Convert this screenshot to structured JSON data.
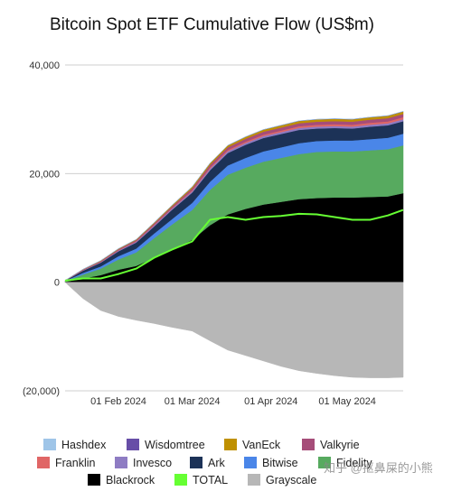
{
  "chart_data": {
    "type": "area",
    "title": "Bitcoin Spot ETF Cumulative Flow (US$m)",
    "ylim": [
      -20000,
      40000
    ],
    "y_ticks": [
      {
        "value": 40000,
        "label": "40,000"
      },
      {
        "value": 20000,
        "label": "20,000"
      },
      {
        "value": 0,
        "label": "0"
      },
      {
        "value": -20000,
        "label": "(20,000)"
      }
    ],
    "grid": true,
    "legend_position": "bottom",
    "x": [
      "2024-01-11",
      "2024-01-18",
      "2024-01-25",
      "2024-02-01",
      "2024-02-08",
      "2024-02-15",
      "2024-02-22",
      "2024-03-01",
      "2024-03-08",
      "2024-03-15",
      "2024-03-22",
      "2024-03-29",
      "2024-04-05",
      "2024-04-12",
      "2024-04-19",
      "2024-04-26",
      "2024-05-03",
      "2024-05-10",
      "2024-05-17",
      "2024-05-23"
    ],
    "x_ticks": [
      {
        "value": "2024-02-01",
        "label": "01 Feb 2024"
      },
      {
        "value": "2024-03-01",
        "label": "01 Mar 2024"
      },
      {
        "value": "2024-04-01",
        "label": "01 Apr 2024"
      },
      {
        "value": "2024-05-01",
        "label": "01 May 2024"
      }
    ],
    "series": [
      {
        "name": "Blackrock",
        "color": "#000000",
        "values": [
          100,
          700,
          1300,
          2300,
          3000,
          4500,
          6000,
          7800,
          10500,
          12500,
          13500,
          14300,
          14800,
          15300,
          15500,
          15600,
          15600,
          15700,
          15800,
          16400
        ]
      },
      {
        "name": "Fidelity",
        "color": "#57aa5f",
        "values": [
          100,
          700,
          1200,
          1900,
          2500,
          3600,
          4600,
          5500,
          6500,
          7300,
          7600,
          7900,
          8100,
          8300,
          8500,
          8500,
          8500,
          8600,
          8700,
          8800
        ]
      },
      {
        "name": "Bitwise",
        "color": "#4a86e8",
        "values": [
          40,
          300,
          400,
          600,
          700,
          850,
          1000,
          1300,
          1500,
          1700,
          1800,
          1900,
          1950,
          2000,
          2000,
          2000,
          2000,
          2050,
          2100,
          2150
        ]
      },
      {
        "name": "Ark",
        "color": "#1c3257",
        "values": [
          50,
          400,
          700,
          900,
          1100,
          1300,
          1700,
          1900,
          2100,
          2300,
          2400,
          2450,
          2450,
          2450,
          2300,
          2300,
          2200,
          2300,
          2300,
          2300
        ]
      },
      {
        "name": "Invesco",
        "color": "#8e7cc3",
        "values": [
          10,
          70,
          100,
          130,
          150,
          180,
          200,
          250,
          300,
          320,
          340,
          350,
          350,
          360,
          360,
          360,
          360,
          360,
          360,
          360
        ]
      },
      {
        "name": "Franklin",
        "color": "#e06666",
        "values": [
          10,
          40,
          60,
          70,
          90,
          110,
          130,
          160,
          200,
          220,
          240,
          260,
          280,
          300,
          320,
          330,
          340,
          350,
          360,
          380
        ]
      },
      {
        "name": "Valkyrie",
        "color": "#a64d79",
        "values": [
          10,
          100,
          140,
          180,
          210,
          250,
          300,
          400,
          500,
          520,
          540,
          550,
          560,
          570,
          580,
          580,
          580,
          590,
          590,
          600
        ]
      },
      {
        "name": "VanEck",
        "color": "#bf9000",
        "values": [
          10,
          60,
          80,
          100,
          130,
          160,
          200,
          250,
          300,
          330,
          350,
          370,
          390,
          400,
          410,
          410,
          410,
          420,
          430,
          440
        ]
      },
      {
        "name": "Wisdomtree",
        "color": "#674ea7",
        "values": [
          1,
          3,
          5,
          7,
          9,
          11,
          13,
          16,
          20,
          22,
          24,
          26,
          28,
          30,
          30,
          30,
          30,
          30,
          30,
          30
        ]
      },
      {
        "name": "Hashdex",
        "color": "#9fc5e8",
        "values": [
          0,
          2,
          3,
          4,
          5,
          6,
          8,
          10,
          12,
          13,
          13,
          13,
          13,
          13,
          13,
          13,
          13,
          13,
          13,
          13
        ]
      },
      {
        "name": "Grayscale",
        "color": "#b7b7b7",
        "values": [
          0,
          -3000,
          -5200,
          -6300,
          -7000,
          -7600,
          -8300,
          -9000,
          -10800,
          -12500,
          -13500,
          -14500,
          -15500,
          -16300,
          -16800,
          -17200,
          -17500,
          -17600,
          -17600,
          -17500
        ]
      },
      {
        "name": "TOTAL",
        "color": "#66ff33",
        "values": [
          300,
          700,
          700,
          1500,
          2500,
          4500,
          6000,
          7500,
          11500,
          12000,
          11500,
          12000,
          12200,
          12600,
          12500,
          12000,
          11500,
          11500,
          12300,
          13300
        ]
      }
    ]
  },
  "legend": {
    "items": [
      {
        "name": "Hashdex",
        "color": "#9fc5e8"
      },
      {
        "name": "Wisdomtree",
        "color": "#674ea7"
      },
      {
        "name": "VanEck",
        "color": "#bf9000"
      },
      {
        "name": "Valkyrie",
        "color": "#a64d79"
      },
      {
        "name": "Franklin",
        "color": "#e06666"
      },
      {
        "name": "Invesco",
        "color": "#8e7cc3"
      },
      {
        "name": "Ark",
        "color": "#1c3257"
      },
      {
        "name": "Bitwise",
        "color": "#4a86e8"
      },
      {
        "name": "Fidelity",
        "color": "#57aa5f"
      },
      {
        "name": "Blackrock",
        "color": "#000000"
      },
      {
        "name": "TOTAL",
        "color": "#66ff33"
      },
      {
        "name": "Grayscale",
        "color": "#b7b7b7"
      }
    ]
  },
  "watermark": "知乎 @抠鼻屎的小熊"
}
